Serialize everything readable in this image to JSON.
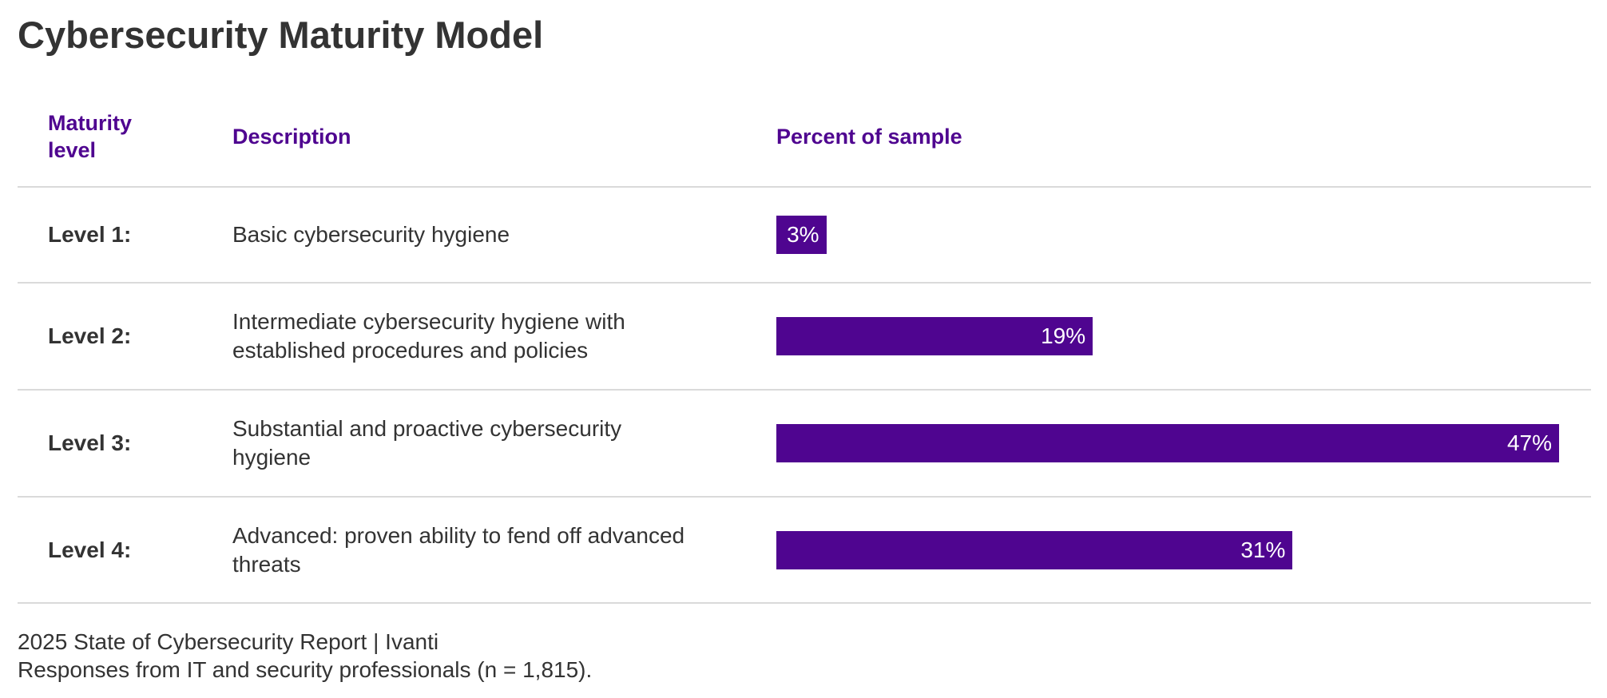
{
  "chart_data": {
    "type": "bar",
    "orientation": "horizontal",
    "title": "Cybersecurity Maturity Model",
    "columns": {
      "level": "Maturity level",
      "description": "Description",
      "percent": "Percent of sample"
    },
    "rows": [
      {
        "level": "Level 1:",
        "description": "Basic cybersecurity hygiene",
        "value": 3,
        "label": "3%"
      },
      {
        "level": "Level 2:",
        "description": "Intermediate cybersecurity hygiene with established procedures and policies",
        "value": 19,
        "label": "19%"
      },
      {
        "level": "Level 3:",
        "description": "Substantial and proactive cybersecurity hygiene",
        "value": 47,
        "label": "47%"
      },
      {
        "level": "Level 4:",
        "description": "Advanced: proven ability to fend off advanced threats",
        "value": 31,
        "label": "31%"
      }
    ],
    "xlim": [
      0,
      47
    ],
    "bar_color": "#4f0590",
    "header_color": "#4f0590"
  },
  "footer": {
    "source": "2025 State of Cybersecurity Report | Ivanti",
    "note": "Responses from IT and security professionals (n = 1,815)."
  }
}
